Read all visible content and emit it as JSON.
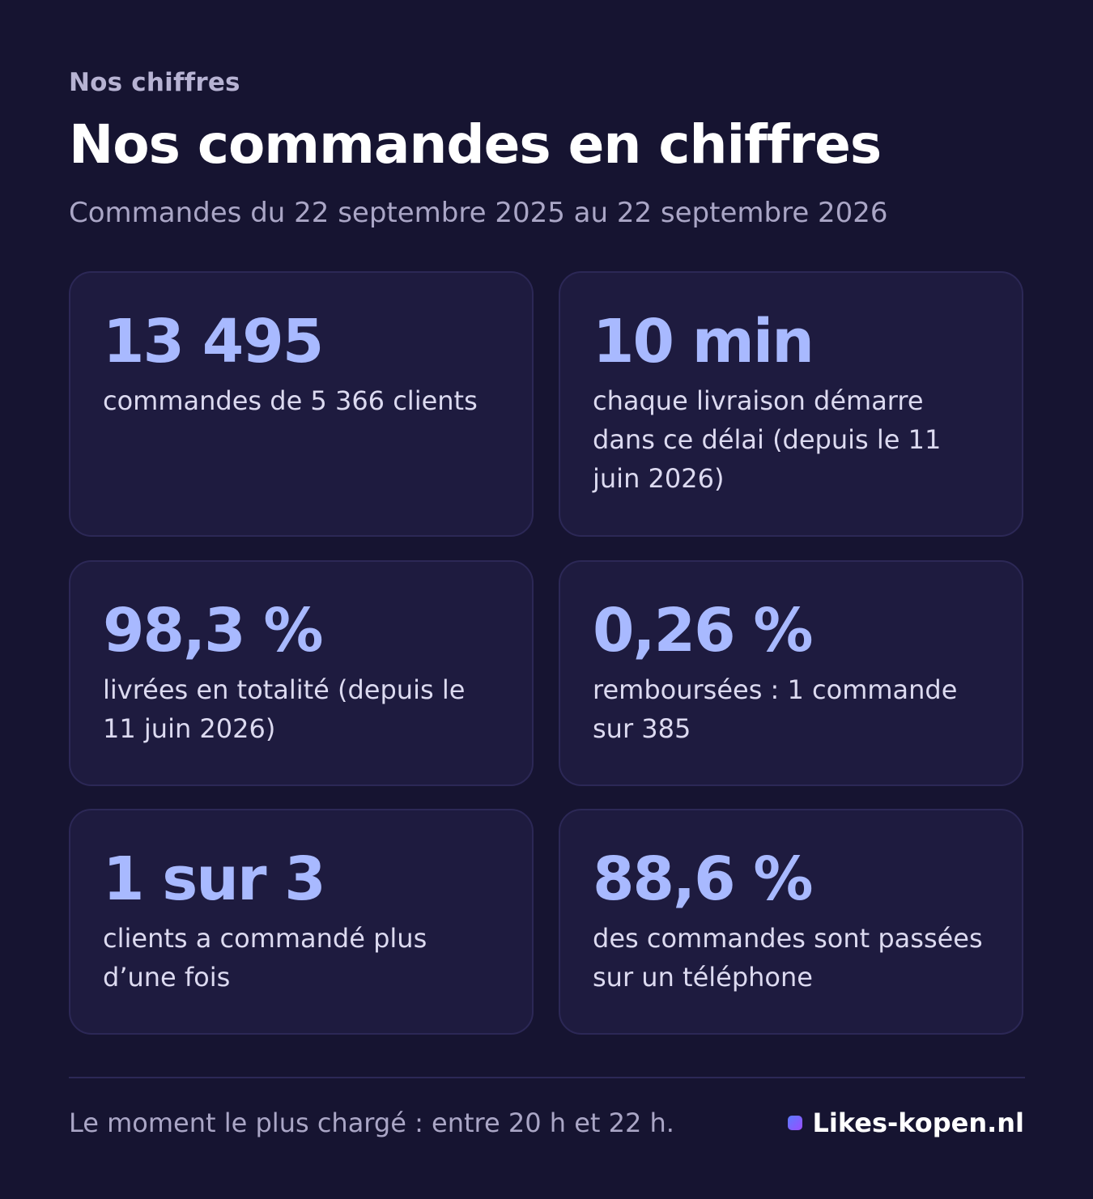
{
  "header": {
    "eyebrow": "Nos chiffres",
    "title": "Nos commandes en chiffres",
    "subtitle": "Commandes du 22 septembre 2025 au 22 septembre 2026"
  },
  "stats": [
    {
      "value": "13 495",
      "label": "commandes de 5 366 clients"
    },
    {
      "value": "10 min",
      "label": "chaque livraison démarre dans ce délai (depuis le 11 juin 2026)"
    },
    {
      "value": "98,3 %",
      "label": "livrées en totalité (depuis le 11 juin 2026)"
    },
    {
      "value": "0,26 %",
      "label": "remboursées : 1 commande sur 385"
    },
    {
      "value": "1 sur 3",
      "label": "clients a commandé plus d’une fois"
    },
    {
      "value": "88,6 %",
      "label": "des commandes sont passées sur un téléphone"
    }
  ],
  "footer": {
    "note": "Le moment le plus chargé : entre 20 h et 22 h.",
    "brand": "Likes-kopen.nl",
    "brand_icon": "square-logo-icon"
  },
  "colors": {
    "background": "#161431",
    "card": "#1e1b3f",
    "accent": "#a8b9ff"
  }
}
